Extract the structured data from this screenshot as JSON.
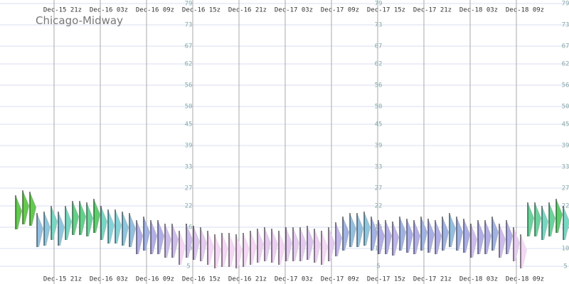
{
  "chart_data": {
    "type": "meteogram",
    "title": "Chicago-Midway",
    "x_labels": [
      "Dec-15 21z",
      "Dec-16 03z",
      "Dec-16 09z",
      "Dec-16 15z",
      "Dec-16 21z",
      "Dec-17 03z",
      "Dec-17 09z",
      "Dec-17 15z",
      "Dec-17 21z",
      "Dec-18 03z",
      "Dec-18 09z"
    ],
    "ylim": [
      0,
      80
    ],
    "yticks": [
      79,
      73,
      67,
      62,
      56,
      50,
      45,
      39,
      33,
      27,
      22,
      16,
      10,
      5
    ],
    "grid": true,
    "values": [
      25,
      26.4,
      26,
      20,
      20.4,
      22,
      20.4,
      22,
      23.4,
      23.4,
      23,
      24,
      22,
      21,
      21,
      20.4,
      20,
      18,
      19,
      18,
      18,
      17,
      17,
      15,
      17,
      16.4,
      16,
      15,
      14,
      14.4,
      14.4,
      14,
      14.4,
      15,
      15.6,
      16,
      15.6,
      15,
      16,
      16,
      16,
      16.4,
      15.6,
      15,
      16,
      17.4,
      19,
      20,
      20,
      20.4,
      19,
      18,
      18,
      17.6,
      19,
      18.4,
      18,
      19,
      18.4,
      18,
      19,
      20,
      19,
      18.4,
      17,
      18,
      18,
      19,
      17,
      18,
      16,
      14,
      23,
      23,
      22,
      23,
      24,
      22
    ]
  }
}
